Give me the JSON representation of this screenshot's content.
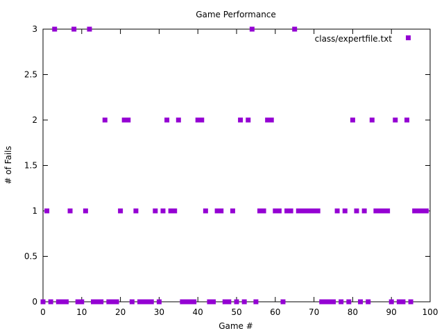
{
  "chart_data": {
    "type": "scatter",
    "title": "Game Performance",
    "xlabel": "Game #",
    "ylabel": "# of Fails",
    "xlim": [
      0,
      100
    ],
    "ylim": [
      0,
      3
    ],
    "xticks": [
      0,
      10,
      20,
      30,
      40,
      50,
      60,
      70,
      80,
      90,
      100
    ],
    "xtick_labels": [
      "0",
      "10",
      "20",
      "30",
      "40",
      "50",
      "60",
      "70",
      "80",
      "90",
      "100"
    ],
    "yticks": [
      0,
      0.5,
      1,
      1.5,
      2,
      2.5,
      3
    ],
    "ytick_labels": [
      "0",
      "0.5",
      "1",
      "1.5",
      "2",
      "2.5",
      "3"
    ],
    "grid": false,
    "legend_position": "top-right",
    "series": [
      {
        "name": "class/expertfile.txt",
        "color": "#9400d3",
        "x": [
          0,
          1,
          2,
          3,
          4,
          5,
          6,
          7,
          8,
          9,
          10,
          11,
          12,
          13,
          14,
          15,
          16,
          17,
          18,
          19,
          20,
          21,
          22,
          23,
          24,
          25,
          26,
          27,
          28,
          29,
          30,
          31,
          32,
          33,
          34,
          35,
          36,
          37,
          38,
          39,
          40,
          41,
          42,
          43,
          44,
          45,
          46,
          47,
          48,
          49,
          50,
          51,
          52,
          53,
          54,
          55,
          56,
          57,
          58,
          59,
          60,
          61,
          62,
          63,
          64,
          65,
          66,
          67,
          68,
          69,
          70,
          71,
          72,
          73,
          74,
          75,
          76,
          77,
          78,
          79,
          80,
          81,
          82,
          83,
          84,
          85,
          86,
          87,
          88,
          89,
          90,
          91,
          92,
          93,
          94,
          95,
          96,
          97,
          98,
          99
        ],
        "y": [
          0,
          1,
          0,
          3,
          0,
          0,
          0,
          1,
          3,
          0,
          0,
          1,
          3,
          0,
          0,
          0,
          2,
          0,
          0,
          0,
          1,
          2,
          2,
          0,
          1,
          0,
          0,
          0,
          0,
          1,
          0,
          1,
          2,
          1,
          1,
          2,
          0,
          0,
          0,
          0,
          2,
          2,
          1,
          0,
          0,
          1,
          1,
          0,
          0,
          1,
          0,
          2,
          0,
          2,
          3,
          0,
          1,
          1,
          2,
          2,
          1,
          1,
          0,
          1,
          1,
          3,
          1,
          1,
          1,
          1,
          1,
          1,
          0,
          0,
          0,
          0,
          1,
          0,
          1,
          0,
          2,
          1,
          0,
          1,
          0,
          2,
          1,
          1,
          1,
          1,
          0,
          2,
          0,
          0,
          2,
          0,
          1,
          1,
          1,
          1
        ]
      }
    ]
  }
}
